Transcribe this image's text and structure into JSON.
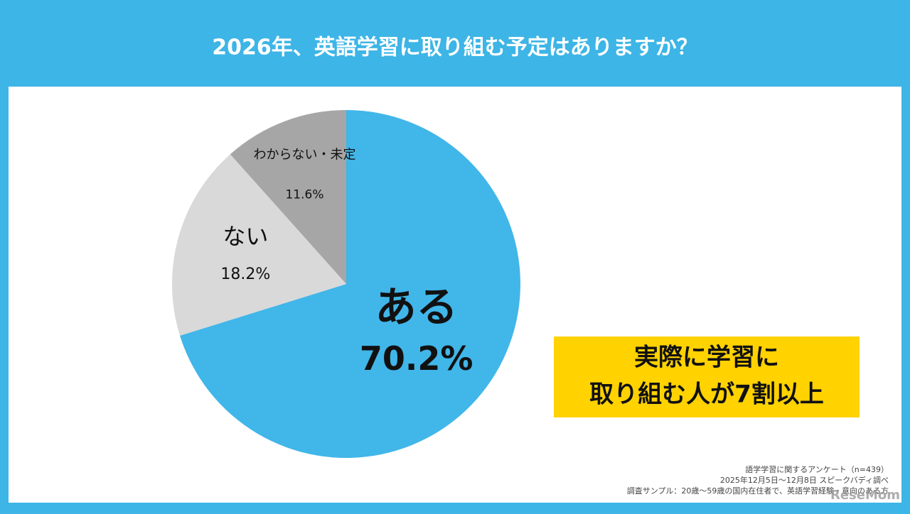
{
  "chart_data": {
    "type": "pie",
    "title": "2026年、英語学習に取り組む予定はありますか？",
    "categories": [
      "ある",
      "ない",
      "わからない・未定"
    ],
    "values": [
      70.2,
      18.2,
      11.6
    ],
    "value_labels": [
      "70.2%",
      "18.2%",
      "11.6%"
    ],
    "colors": [
      "#41b6e9",
      "#d9d9d9",
      "#a6a6a6"
    ],
    "start_angle": 0,
    "direction": "clockwise",
    "callout": [
      "実際に学習に",
      "取り組む人が7割以上"
    ],
    "source": [
      "語学学習に関するアンケート（n=439）",
      "2025年12月5日〜12月8日 スピークバディ調べ",
      "調査サンプル：20歳〜59歳の国内在住者で、英語学習経験・意向のある方"
    ],
    "watermark": "ReseMom"
  }
}
